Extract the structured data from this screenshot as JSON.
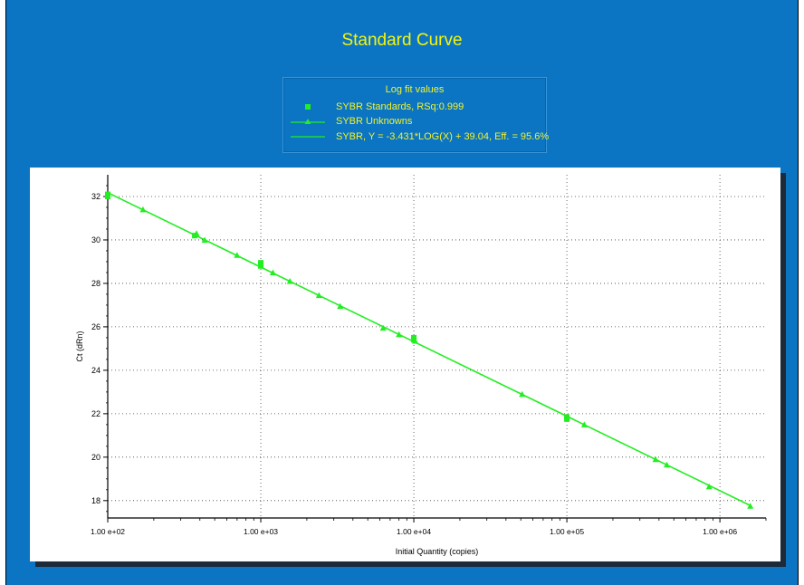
{
  "chart_data": {
    "type": "scatter",
    "title": "Standard Curve",
    "legend_title": "Log fit values",
    "legend": [
      {
        "label": "SYBR Standards, RSq:0.999",
        "marker": "square"
      },
      {
        "label": "SYBR Unknowns",
        "marker": "triangle-line"
      },
      {
        "label": "SYBR, Y = -3.431*LOG(X) + 39.04, Eff. = 95.6%",
        "marker": "line"
      }
    ],
    "xlabel": "Initial Quantity (copies)",
    "ylabel": "Ct (dRn)",
    "x_scale": "log",
    "xlim": [
      100,
      2000000
    ],
    "ylim": [
      17.2,
      33
    ],
    "x_ticks": [
      {
        "value": 100,
        "label": "1.00 e+02"
      },
      {
        "value": 1000,
        "label": "1.00 e+03"
      },
      {
        "value": 10000,
        "label": "1.00 e+04"
      },
      {
        "value": 100000,
        "label": "1.00 e+05"
      },
      {
        "value": 1000000,
        "label": "1.00 e+06"
      }
    ],
    "y_ticks": [
      {
        "value": 18,
        "label": "18"
      },
      {
        "value": 20,
        "label": "20"
      },
      {
        "value": 22,
        "label": "22"
      },
      {
        "value": 24,
        "label": "24"
      },
      {
        "value": 26,
        "label": "26"
      },
      {
        "value": 28,
        "label": "28"
      },
      {
        "value": 30,
        "label": "30"
      },
      {
        "value": 32,
        "label": "32"
      }
    ],
    "grid": true,
    "series": [
      {
        "name": "SYBR Standards, RSq:0.999",
        "marker": "square",
        "color": "#22ee22",
        "x": [
          100,
          100,
          370,
          1000,
          1000,
          10000,
          10000,
          100000,
          100000
        ],
        "y": [
          32.1,
          32.0,
          30.2,
          28.95,
          28.8,
          25.5,
          25.4,
          21.85,
          21.75
        ]
      },
      {
        "name": "SYBR Unknowns",
        "marker": "triangle",
        "color": "#22ee22",
        "x": [
          170,
          380,
          430,
          700,
          1200,
          1550,
          2400,
          3300,
          6300,
          8000,
          10200,
          51000,
          130000,
          380000,
          450000,
          850000,
          1580000
        ],
        "y": [
          31.4,
          30.3,
          30.0,
          29.3,
          28.5,
          28.1,
          27.45,
          26.95,
          25.95,
          25.65,
          25.35,
          22.9,
          21.5,
          19.9,
          19.65,
          18.65,
          17.75
        ]
      }
    ],
    "fit": {
      "slope": -3.431,
      "intercept": 39.04,
      "color": "#22ee22"
    }
  }
}
